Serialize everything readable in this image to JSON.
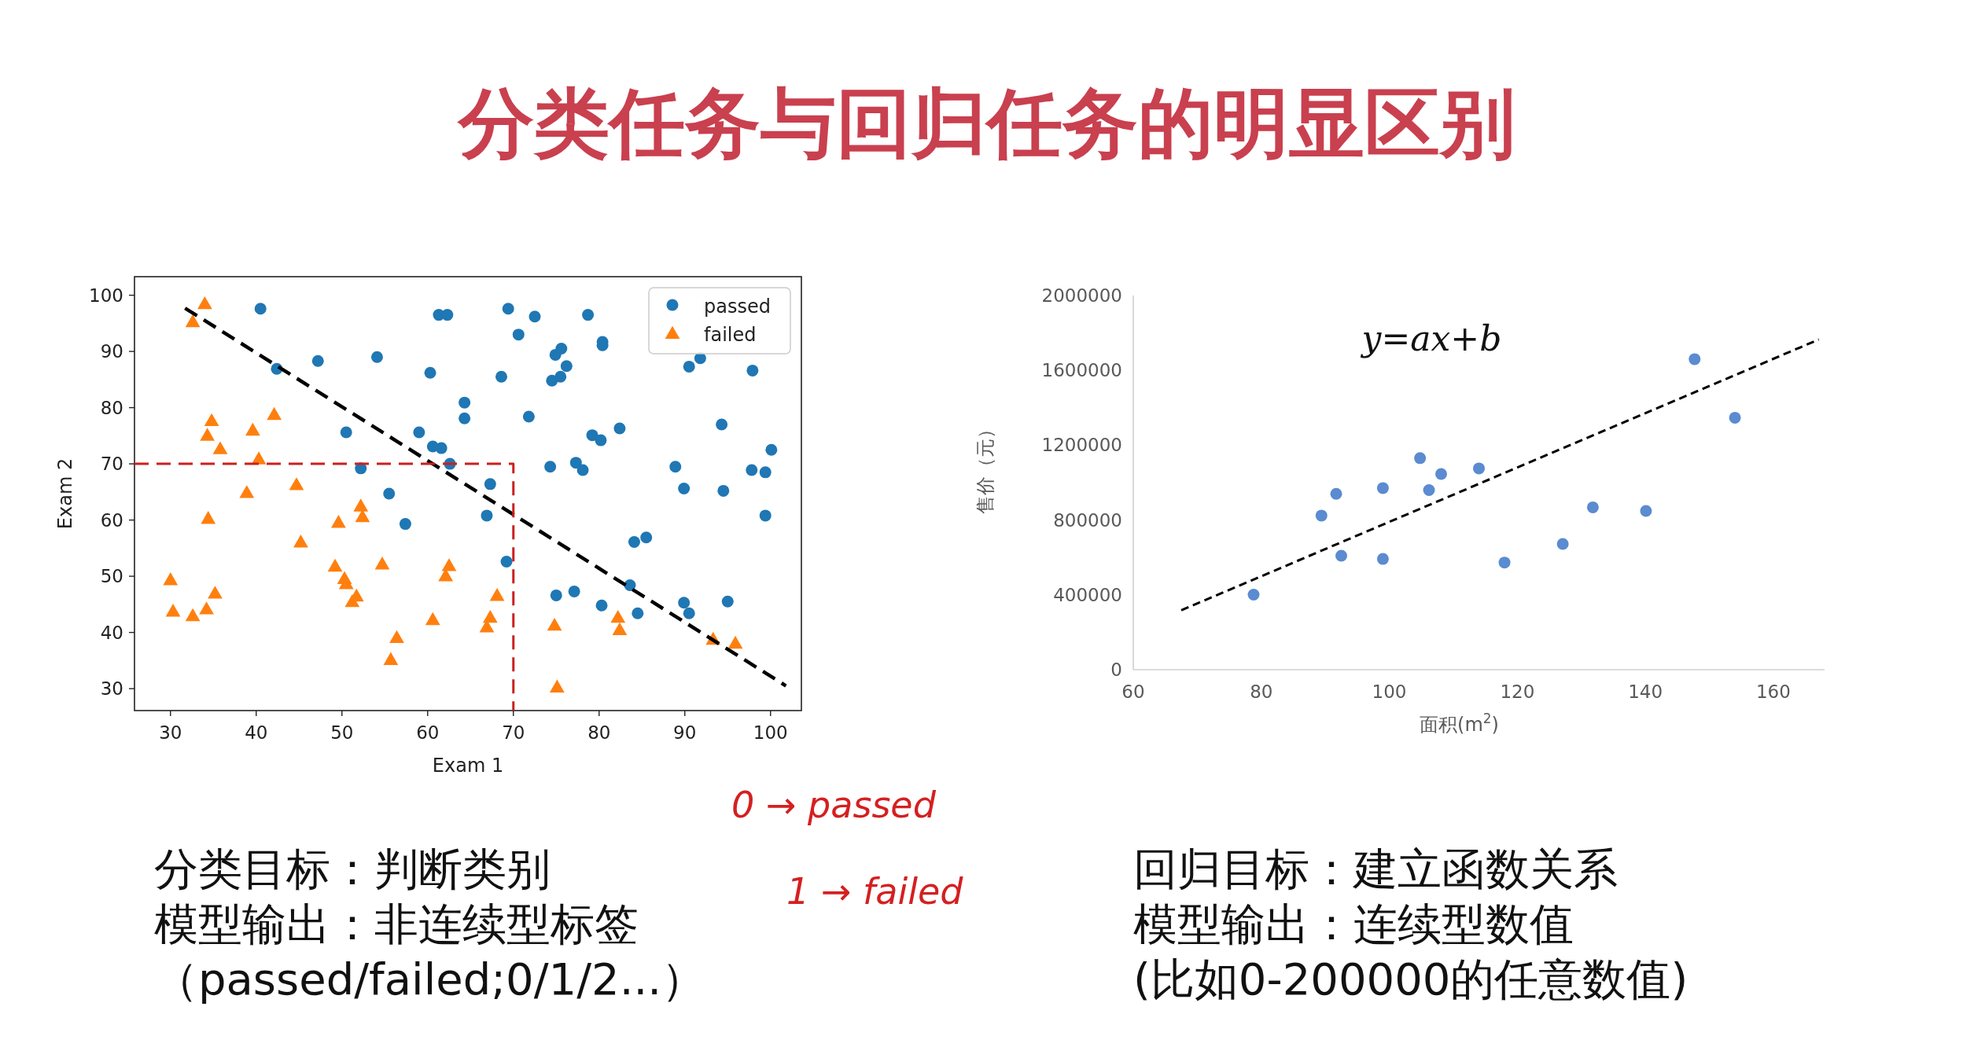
{
  "chart_data": [
    {
      "type": "scatter",
      "xlabel": "Exam 1",
      "ylabel": "Exam 2",
      "xlim": [
        25.8,
        103.6
      ],
      "ylim": [
        26.1,
        103.3
      ],
      "xticks": [
        30,
        40,
        50,
        60,
        70,
        80,
        90,
        100
      ],
      "yticks": [
        30,
        40,
        50,
        60,
        70,
        80,
        90,
        100
      ],
      "legend": "top right",
      "series": [
        {
          "name": "passed",
          "color": "#1f77b4",
          "marker": "circle",
          "x": [
            40.5,
            42.4,
            47.2,
            54.1,
            60.3,
            61.3,
            62.3,
            64.3,
            64.3,
            50.5,
            59.0,
            60.6,
            61.6,
            62.6,
            52.2,
            55.5,
            57.4,
            66.9,
            67.3,
            69.4,
            72.5,
            70.6,
            68.6,
            78.7,
            80.4,
            80.4,
            74.9,
            75.6,
            76.2,
            74.5,
            75.5,
            71.8,
            82.4,
            79.2,
            80.2,
            94.3,
            100.1,
            74.3,
            77.3,
            78.1,
            88.9,
            97.8,
            99.4,
            89.9,
            94.5,
            99.4,
            84.1,
            85.5,
            69.2,
            83.6,
            75.0,
            77.1,
            80.3,
            84.5,
            89.9,
            90.5,
            95.0,
            90.5,
            91.8,
            97.9
          ],
          "values": [
            97.6,
            86.9,
            88.3,
            89.0,
            86.2,
            96.5,
            96.5,
            80.9,
            78.1,
            75.6,
            75.6,
            73.1,
            72.8,
            70.0,
            69.2,
            64.7,
            59.3,
            60.8,
            66.4,
            97.6,
            96.2,
            93.0,
            85.5,
            96.5,
            91.7,
            91.1,
            89.4,
            90.5,
            87.4,
            84.8,
            85.5,
            78.4,
            76.3,
            75.1,
            74.2,
            77.0,
            72.5,
            69.5,
            70.2,
            68.9,
            69.5,
            68.9,
            68.5,
            65.6,
            65.2,
            60.8,
            56.1,
            56.9,
            52.6,
            48.4,
            46.6,
            47.3,
            44.8,
            43.4,
            45.3,
            43.4,
            45.5,
            87.3,
            88.8,
            86.6
          ]
        },
        {
          "name": "failed",
          "color": "#ff7f0e",
          "marker": "triangle",
          "x": [
            34.0,
            32.6,
            34.8,
            34.3,
            35.8,
            42.1,
            39.6,
            40.3,
            38.9,
            44.7,
            34.4,
            45.2,
            49.2,
            50.3,
            50.5,
            52.2,
            52.4,
            49.6,
            51.7,
            51.2,
            54.7,
            62.1,
            62.5,
            60.6,
            56.4,
            55.7,
            30.0,
            30.3,
            32.6,
            34.2,
            35.2,
            66.9,
            68.1,
            67.3,
            74.8,
            75.1,
            82.2,
            82.4,
            93.3,
            95.9
          ],
          "values": [
            98.5,
            95.3,
            77.7,
            75.1,
            72.7,
            78.8,
            76.0,
            70.9,
            64.9,
            66.3,
            60.3,
            56.1,
            51.8,
            49.6,
            48.7,
            62.5,
            60.6,
            59.6,
            46.5,
            45.5,
            52.2,
            50.1,
            51.9,
            42.3,
            39.1,
            35.2,
            49.4,
            43.8,
            43.0,
            44.2,
            47.0,
            41.0,
            46.6,
            42.7,
            41.3,
            30.3,
            42.7,
            40.5,
            38.8,
            38.1
          ]
        },
        {
          "type": "line",
          "color": "#000000",
          "line_style": "dashed",
          "x": [
            31.7,
            101.8
          ],
          "values": [
            97.7,
            30.5
          ]
        },
        {
          "type": "line",
          "color": "#cc1f1f",
          "line_style": "dashed",
          "x": [
            25.8,
            70,
            70
          ],
          "values": [
            70,
            70,
            26.1
          ]
        }
      ]
    },
    {
      "type": "scatter",
      "xlabel": "面积(m$^{2}$)",
      "ylabel": "售价（元）",
      "xlim": [
        60,
        168
      ],
      "ylim": [
        0,
        2000000
      ],
      "xticks": [
        60,
        80,
        100,
        120,
        140,
        160
      ],
      "yticks": [
        0,
        400000,
        800000,
        1200000,
        1600000,
        2000000
      ],
      "annotations": [
        "y=ax+b"
      ],
      "series": [
        {
          "color": "#5b8bd0",
          "marker": "circle",
          "x": [
            78.8,
            89.4,
            91.7,
            92.5,
            99.0,
            99.0,
            104.8,
            108.1,
            106.2,
            114.0,
            118.0,
            127.1,
            131.8,
            140.1,
            147.7,
            154.0
          ],
          "values": [
            401000,
            824000,
            940000,
            609000,
            971000,
            592000,
            1131000,
            1046000,
            960000,
            1076000,
            573000,
            672000,
            868000,
            849000,
            1660000,
            1347000
          ]
        },
        {
          "type": "line",
          "color": "#000000",
          "line_style": "dashed",
          "x": [
            67.5,
            167.1
          ],
          "values": [
            318000,
            1765000
          ]
        }
      ]
    },
    {
      "type": "other",
      "title": "分类任务与回归任务的明显区别",
      "annotations": [
        "分类目标：判断类别",
        "模型输出：非连续型标签",
        "（passed/failed;0/1/2...）",
        "回归目标：建立函数关系",
        "模型输出：连续型数值",
        "(比如0-200000的任意数值)",
        "0 → passed",
        "1 → failed"
      ]
    }
  ]
}
